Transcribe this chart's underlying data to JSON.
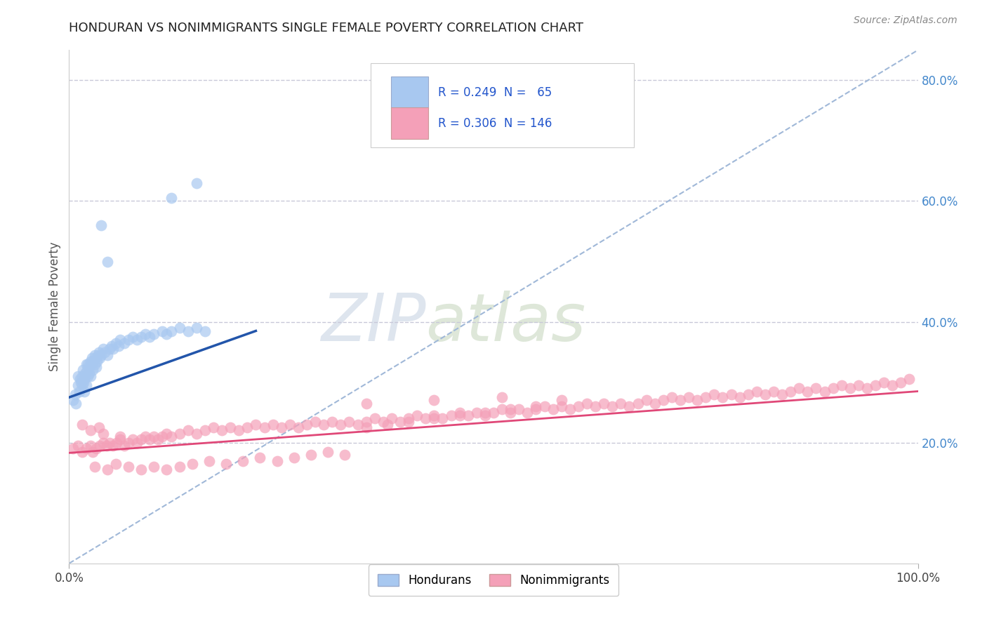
{
  "title": "HONDURAN VS NONIMMIGRANTS SINGLE FEMALE POVERTY CORRELATION CHART",
  "source_text": "Source: ZipAtlas.com",
  "ylabel": "Single Female Poverty",
  "legend_labels": [
    "Hondurans",
    "Nonimmigrants"
  ],
  "blue_color": "#A8C8F0",
  "pink_color": "#F4A0B8",
  "blue_line_color": "#2255AA",
  "pink_line_color": "#E04878",
  "dashed_line_color": "#A0B8D8",
  "title_color": "#222222",
  "axis_label_color": "#555555",
  "watermark_zip_color": "#C8D4E8",
  "watermark_atlas_color": "#D0D8C8",
  "legend_text_color": "#2255CC",
  "background_color": "#FFFFFF",
  "grid_color": "#C8C8D8",
  "xlim": [
    0.0,
    1.0
  ],
  "ylim": [
    0.0,
    0.85
  ],
  "right_ytick_values": [
    0.2,
    0.4,
    0.6,
    0.8
  ],
  "right_ytick_labels": [
    "20.0%",
    "40.0%",
    "60.0%",
    "80.0%"
  ],
  "xtick_values": [
    0.0,
    1.0
  ],
  "xtick_labels": [
    "0.0%",
    "100.0%"
  ],
  "blue_line_x0": 0.0,
  "blue_line_y0": 0.275,
  "blue_line_x1": 0.22,
  "blue_line_y1": 0.385,
  "pink_line_x0": 0.0,
  "pink_line_y0": 0.183,
  "pink_line_x1": 1.0,
  "pink_line_y1": 0.285,
  "dashed_line_x0": 0.0,
  "dashed_line_y0": 0.0,
  "dashed_line_x1": 1.0,
  "dashed_line_y1": 0.85,
  "hondurans_x": [
    0.005,
    0.007,
    0.008,
    0.01,
    0.01,
    0.012,
    0.013,
    0.014,
    0.015,
    0.015,
    0.016,
    0.017,
    0.018,
    0.018,
    0.019,
    0.02,
    0.02,
    0.021,
    0.022,
    0.022,
    0.023,
    0.024,
    0.025,
    0.025,
    0.026,
    0.027,
    0.028,
    0.028,
    0.03,
    0.03,
    0.031,
    0.032,
    0.033,
    0.034,
    0.035,
    0.036,
    0.038,
    0.04,
    0.042,
    0.045,
    0.048,
    0.05,
    0.052,
    0.055,
    0.058,
    0.06,
    0.065,
    0.07,
    0.075,
    0.08,
    0.085,
    0.09,
    0.095,
    0.1,
    0.11,
    0.115,
    0.12,
    0.13,
    0.14,
    0.15,
    0.16,
    0.045,
    0.038,
    0.12,
    0.15
  ],
  "hondurans_y": [
    0.27,
    0.28,
    0.265,
    0.31,
    0.295,
    0.285,
    0.305,
    0.3,
    0.31,
    0.295,
    0.32,
    0.3,
    0.285,
    0.305,
    0.315,
    0.33,
    0.295,
    0.32,
    0.33,
    0.31,
    0.325,
    0.315,
    0.335,
    0.31,
    0.33,
    0.34,
    0.335,
    0.32,
    0.345,
    0.33,
    0.34,
    0.325,
    0.335,
    0.345,
    0.35,
    0.34,
    0.345,
    0.355,
    0.35,
    0.345,
    0.355,
    0.36,
    0.355,
    0.365,
    0.36,
    0.37,
    0.365,
    0.37,
    0.375,
    0.37,
    0.375,
    0.38,
    0.375,
    0.38,
    0.385,
    0.38,
    0.385,
    0.39,
    0.385,
    0.39,
    0.385,
    0.5,
    0.56,
    0.605,
    0.63
  ],
  "nonimmigrants_x": [
    0.005,
    0.01,
    0.015,
    0.02,
    0.025,
    0.028,
    0.032,
    0.036,
    0.04,
    0.044,
    0.048,
    0.052,
    0.056,
    0.06,
    0.065,
    0.07,
    0.075,
    0.08,
    0.085,
    0.09,
    0.095,
    0.1,
    0.105,
    0.11,
    0.115,
    0.12,
    0.13,
    0.14,
    0.15,
    0.16,
    0.17,
    0.18,
    0.19,
    0.2,
    0.21,
    0.22,
    0.23,
    0.24,
    0.25,
    0.26,
    0.27,
    0.28,
    0.29,
    0.3,
    0.31,
    0.32,
    0.33,
    0.34,
    0.35,
    0.36,
    0.37,
    0.38,
    0.39,
    0.4,
    0.41,
    0.42,
    0.43,
    0.44,
    0.45,
    0.46,
    0.47,
    0.48,
    0.49,
    0.5,
    0.51,
    0.52,
    0.53,
    0.54,
    0.55,
    0.56,
    0.57,
    0.58,
    0.59,
    0.6,
    0.61,
    0.62,
    0.63,
    0.64,
    0.65,
    0.66,
    0.67,
    0.68,
    0.69,
    0.7,
    0.71,
    0.72,
    0.73,
    0.74,
    0.75,
    0.76,
    0.77,
    0.78,
    0.79,
    0.8,
    0.81,
    0.82,
    0.83,
    0.84,
    0.85,
    0.86,
    0.87,
    0.88,
    0.89,
    0.9,
    0.91,
    0.92,
    0.93,
    0.94,
    0.95,
    0.96,
    0.97,
    0.98,
    0.99,
    0.03,
    0.045,
    0.055,
    0.07,
    0.085,
    0.1,
    0.115,
    0.13,
    0.145,
    0.165,
    0.185,
    0.205,
    0.225,
    0.245,
    0.265,
    0.285,
    0.305,
    0.325,
    0.35,
    0.375,
    0.4,
    0.43,
    0.46,
    0.49,
    0.52,
    0.55,
    0.58,
    0.015,
    0.025,
    0.035,
    0.04,
    0.06,
    0.35,
    0.43,
    0.51
  ],
  "nonimmigrants_y": [
    0.19,
    0.195,
    0.185,
    0.19,
    0.195,
    0.185,
    0.19,
    0.195,
    0.2,
    0.195,
    0.2,
    0.195,
    0.2,
    0.205,
    0.195,
    0.2,
    0.205,
    0.2,
    0.205,
    0.21,
    0.205,
    0.21,
    0.205,
    0.21,
    0.215,
    0.21,
    0.215,
    0.22,
    0.215,
    0.22,
    0.225,
    0.22,
    0.225,
    0.22,
    0.225,
    0.23,
    0.225,
    0.23,
    0.225,
    0.23,
    0.225,
    0.23,
    0.235,
    0.23,
    0.235,
    0.23,
    0.235,
    0.23,
    0.235,
    0.24,
    0.235,
    0.24,
    0.235,
    0.24,
    0.245,
    0.24,
    0.245,
    0.24,
    0.245,
    0.25,
    0.245,
    0.25,
    0.245,
    0.25,
    0.255,
    0.25,
    0.255,
    0.25,
    0.255,
    0.26,
    0.255,
    0.26,
    0.255,
    0.26,
    0.265,
    0.26,
    0.265,
    0.26,
    0.265,
    0.26,
    0.265,
    0.27,
    0.265,
    0.27,
    0.275,
    0.27,
    0.275,
    0.27,
    0.275,
    0.28,
    0.275,
    0.28,
    0.275,
    0.28,
    0.285,
    0.28,
    0.285,
    0.28,
    0.285,
    0.29,
    0.285,
    0.29,
    0.285,
    0.29,
    0.295,
    0.29,
    0.295,
    0.29,
    0.295,
    0.3,
    0.295,
    0.3,
    0.305,
    0.16,
    0.155,
    0.165,
    0.16,
    0.155,
    0.16,
    0.155,
    0.16,
    0.165,
    0.17,
    0.165,
    0.17,
    0.175,
    0.17,
    0.175,
    0.18,
    0.185,
    0.18,
    0.225,
    0.23,
    0.235,
    0.24,
    0.245,
    0.25,
    0.255,
    0.26,
    0.27,
    0.23,
    0.22,
    0.225,
    0.215,
    0.21,
    0.265,
    0.27,
    0.275
  ]
}
